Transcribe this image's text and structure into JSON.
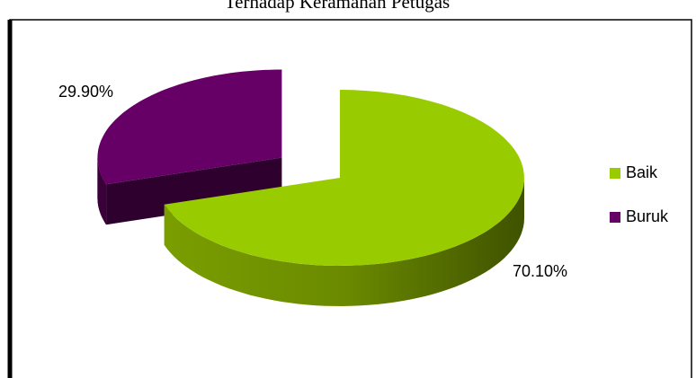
{
  "chart_data": {
    "type": "pie",
    "title": "Terhadap Keramahan Petugas",
    "categories": [
      "Baik",
      "Buruk"
    ],
    "values": [
      70.1,
      29.9
    ],
    "value_labels": [
      "70.10%",
      "29.90%"
    ],
    "colors": [
      "#99cc00",
      "#660066"
    ],
    "legend": "right"
  }
}
